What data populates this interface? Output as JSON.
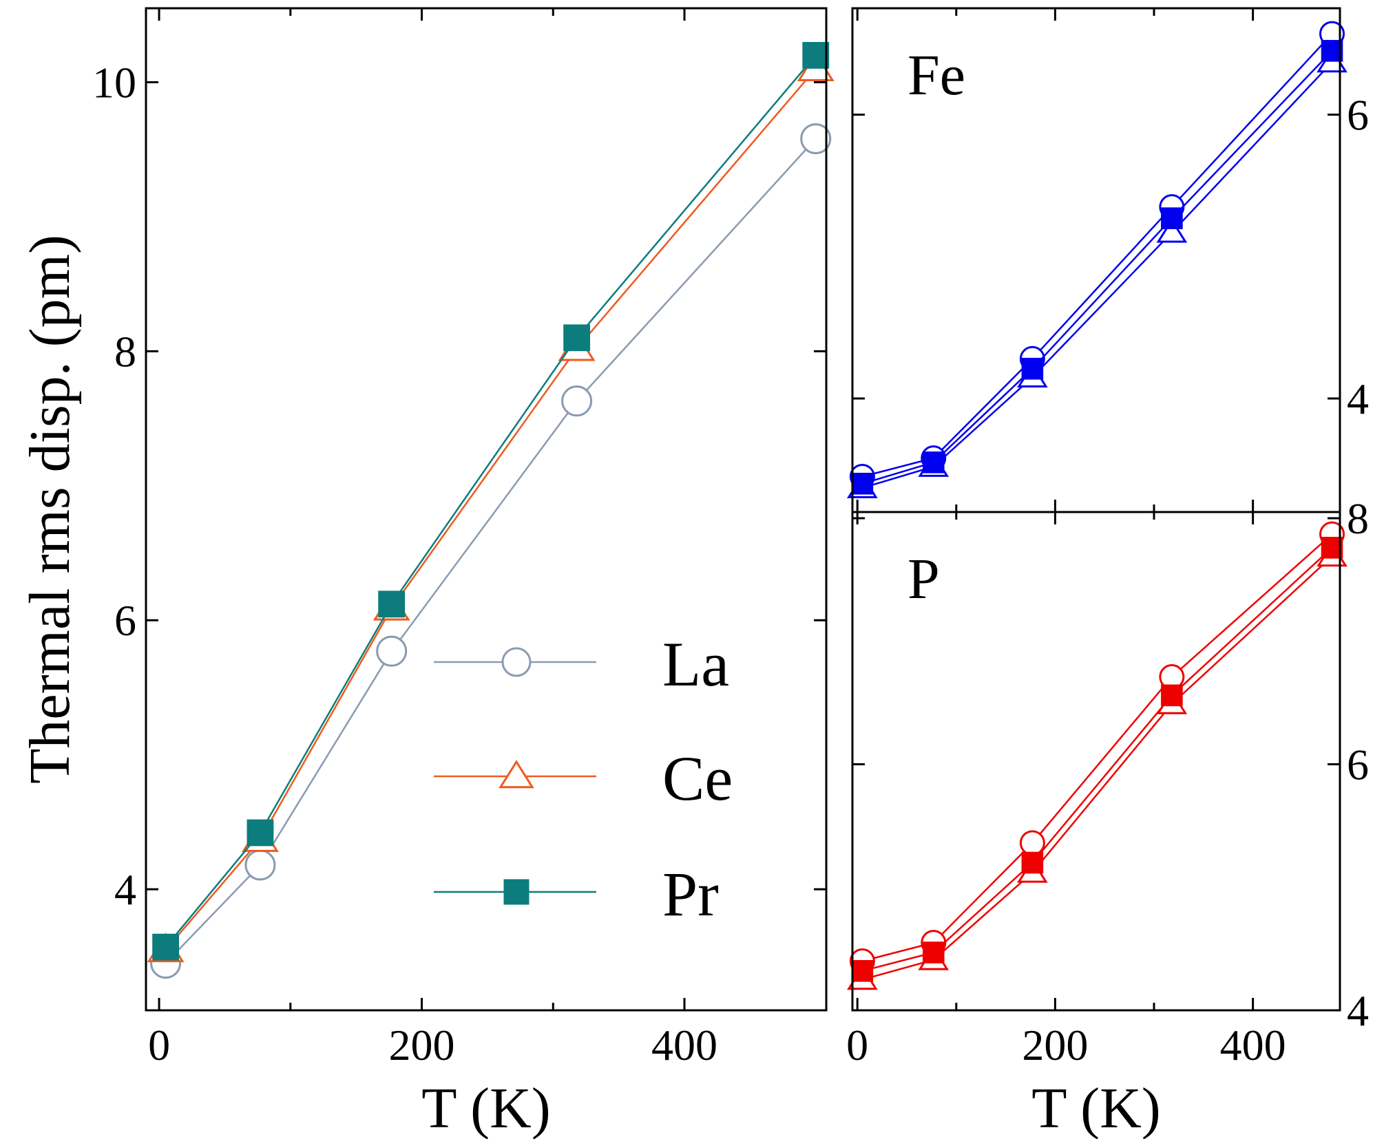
{
  "chart_data": [
    {
      "type": "line",
      "panel": "main",
      "xlabel": "T (K)",
      "ylabel": "Thermal rms disp. (pm)",
      "xlim": [
        -10,
        508
      ],
      "ylim": [
        3.1,
        10.55
      ],
      "xticks": [
        0,
        200,
        400
      ],
      "yticks": [
        4,
        6,
        8,
        10
      ],
      "xminor": [
        100,
        300
      ],
      "yminor": [],
      "x": [
        5,
        77,
        177,
        318,
        500
      ],
      "series": [
        {
          "name": "La",
          "color": "#8a9bb0",
          "marker": "circle-open",
          "values": [
            3.45,
            4.18,
            5.77,
            7.63,
            9.58
          ]
        },
        {
          "name": "Ce",
          "color": "#ee5a1e",
          "marker": "triangle-open",
          "values": [
            3.55,
            4.37,
            6.09,
            8.02,
            10.1
          ]
        },
        {
          "name": "Pr",
          "color": "#0d7c7c",
          "marker": "square-filled",
          "values": [
            3.57,
            4.42,
            6.12,
            8.1,
            10.2
          ]
        }
      ],
      "legend": {
        "position": "lower-right",
        "entries": [
          "La",
          "Ce",
          "Pr"
        ]
      }
    },
    {
      "type": "line",
      "panel": "Fe",
      "label": "Fe",
      "color": "#0000ee",
      "xlim": [
        -5,
        488
      ],
      "ylim": [
        3.2,
        6.75
      ],
      "yticks": [
        4,
        6
      ],
      "x": [
        5,
        77,
        177,
        318,
        480
      ],
      "series": [
        {
          "name": "La",
          "marker": "circle-open",
          "values": [
            3.45,
            3.58,
            4.28,
            5.35,
            6.57
          ]
        },
        {
          "name": "Ce",
          "marker": "triangle-open",
          "values": [
            3.37,
            3.52,
            4.15,
            5.17,
            6.37
          ]
        },
        {
          "name": "Pr",
          "marker": "square-filled",
          "values": [
            3.4,
            3.55,
            4.21,
            5.27,
            6.45
          ]
        }
      ]
    },
    {
      "type": "line",
      "panel": "P",
      "label": "P",
      "color": "#ee0000",
      "xlabel": "T (K)",
      "xlim": [
        -5,
        488
      ],
      "ylim": [
        4.0,
        8.05
      ],
      "xticks": [
        0,
        200,
        400
      ],
      "xminor": [
        100,
        300
      ],
      "yticks": [
        4,
        6,
        8
      ],
      "x": [
        5,
        77,
        177,
        318,
        480
      ],
      "series": [
        {
          "name": "La",
          "marker": "circle-open",
          "values": [
            4.4,
            4.55,
            5.36,
            6.71,
            7.87
          ]
        },
        {
          "name": "Ce",
          "marker": "triangle-open",
          "values": [
            4.25,
            4.41,
            5.12,
            6.49,
            7.69
          ]
        },
        {
          "name": "Pr",
          "marker": "square-filled",
          "values": [
            4.32,
            4.47,
            5.2,
            6.56,
            7.76
          ]
        }
      ]
    }
  ]
}
